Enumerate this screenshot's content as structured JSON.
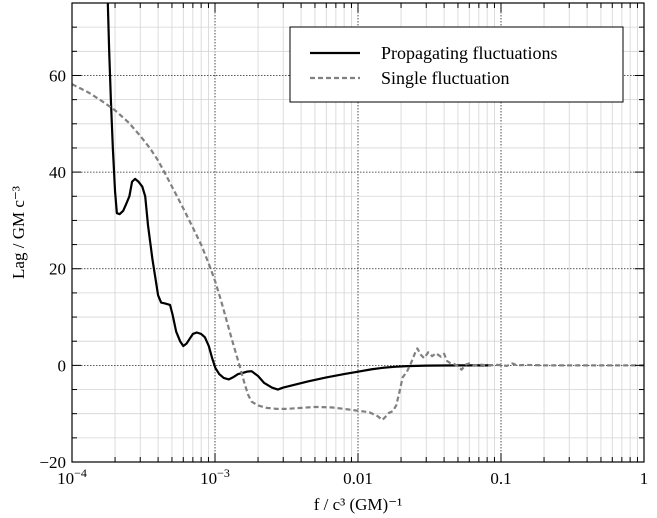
{
  "chart_data": {
    "type": "line",
    "x_scale": "log",
    "xlim": [
      0.0001,
      1
    ],
    "ylim": [
      -20,
      75
    ],
    "xlabel": "f / c³ (GM)⁻¹",
    "ylabel": "Lag / GM c⁻³",
    "x_ticks": [
      {
        "value": 0.0001,
        "base": "10",
        "exp": "−4"
      },
      {
        "value": 0.001,
        "base": "10",
        "exp": "−3"
      },
      {
        "value": 0.01,
        "base": "0.01",
        "exp": ""
      },
      {
        "value": 0.1,
        "base": "0.1",
        "exp": ""
      },
      {
        "value": 1,
        "base": "1",
        "exp": ""
      }
    ],
    "y_ticks": [
      {
        "value": -20,
        "label": "−20"
      },
      {
        "value": 0,
        "label": "0"
      },
      {
        "value": 20,
        "label": "20"
      },
      {
        "value": 40,
        "label": "40"
      },
      {
        "value": 60,
        "label": "60"
      }
    ],
    "grid": true,
    "legend_position": "top-right",
    "series": [
      {
        "name": "Propagating fluctuations",
        "color": "#000000",
        "style": "solid",
        "points": [
          [
            0.000178,
            75
          ],
          [
            0.000182,
            65
          ],
          [
            0.000187,
            55
          ],
          [
            0.000193,
            45
          ],
          [
            0.0002,
            36
          ],
          [
            0.000206,
            31.5
          ],
          [
            0.000215,
            31.3
          ],
          [
            0.000228,
            32
          ],
          [
            0.00024,
            33.5
          ],
          [
            0.000252,
            35
          ],
          [
            0.000263,
            38
          ],
          [
            0.000276,
            38.6
          ],
          [
            0.000292,
            38
          ],
          [
            0.00031,
            37
          ],
          [
            0.000325,
            35
          ],
          [
            0.00034,
            29
          ],
          [
            0.000365,
            22
          ],
          [
            0.0004,
            14.5
          ],
          [
            0.00042,
            13
          ],
          [
            0.00045,
            12.8
          ],
          [
            0.000485,
            12.5
          ],
          [
            0.000505,
            10.5
          ],
          [
            0.000535,
            7
          ],
          [
            0.00057,
            5
          ],
          [
            0.0006,
            4
          ],
          [
            0.000632,
            4.5
          ],
          [
            0.000665,
            5.5
          ],
          [
            0.0007,
            6.5
          ],
          [
            0.000745,
            6.8
          ],
          [
            0.0008,
            6.5
          ],
          [
            0.00085,
            5.8
          ],
          [
            0.000905,
            4
          ],
          [
            0.000955,
            1.5
          ],
          [
            0.001005,
            -0.5
          ],
          [
            0.00107,
            -1.8
          ],
          [
            0.00115,
            -2.6
          ],
          [
            0.00125,
            -2.9
          ],
          [
            0.00135,
            -2.4
          ],
          [
            0.00145,
            -1.8
          ],
          [
            0.00155,
            -1.6
          ],
          [
            0.00167,
            -1.3
          ],
          [
            0.0018,
            -1.2
          ],
          [
            0.002,
            -2.2
          ],
          [
            0.0022,
            -3.6
          ],
          [
            0.0025,
            -4.6
          ],
          [
            0.00275,
            -5
          ],
          [
            0.003,
            -4.6
          ],
          [
            0.0035,
            -4.1
          ],
          [
            0.0045,
            -3.3
          ],
          [
            0.006,
            -2.5
          ],
          [
            0.008,
            -1.8
          ],
          [
            0.01,
            -1.3
          ],
          [
            0.0125,
            -0.8
          ],
          [
            0.015,
            -0.5
          ],
          [
            0.018,
            -0.3
          ],
          [
            0.022,
            -0.15
          ],
          [
            0.03,
            -0.05
          ],
          [
            0.05,
            0
          ],
          [
            0.085,
            0
          ]
        ]
      },
      {
        "name": "Single fluctuation",
        "color": "#808080",
        "style": "dashed",
        "points": [
          [
            0.0001,
            58.2
          ],
          [
            0.00013,
            56.5
          ],
          [
            0.00016,
            54.8
          ],
          [
            0.0002,
            52.8
          ],
          [
            0.00025,
            50.2
          ],
          [
            0.0003,
            47.5
          ],
          [
            0.00035,
            45
          ],
          [
            0.0004,
            42.4
          ],
          [
            0.00045,
            39.6
          ],
          [
            0.0005,
            37
          ],
          [
            0.0006,
            32.5
          ],
          [
            0.0007,
            28.5
          ],
          [
            0.0008,
            25
          ],
          [
            0.0009,
            21.2
          ],
          [
            0.001,
            17.5
          ],
          [
            0.0011,
            13.5
          ],
          [
            0.0012,
            9.5
          ],
          [
            0.0013,
            5.8
          ],
          [
            0.0014,
            2.5
          ],
          [
            0.0015,
            -0.5
          ],
          [
            0.0016,
            -3.5
          ],
          [
            0.0017,
            -6
          ],
          [
            0.0018,
            -7.5
          ],
          [
            0.002,
            -8.3
          ],
          [
            0.0023,
            -8.8
          ],
          [
            0.0027,
            -9
          ],
          [
            0.0032,
            -9
          ],
          [
            0.004,
            -8.8
          ],
          [
            0.005,
            -8.6
          ],
          [
            0.0065,
            -8.7
          ],
          [
            0.008,
            -9
          ],
          [
            0.01,
            -9.4
          ],
          [
            0.012,
            -9.7
          ],
          [
            0.0137,
            -10.5
          ],
          [
            0.0148,
            -11.3
          ],
          [
            0.0155,
            -10.7
          ],
          [
            0.0165,
            -9.8
          ],
          [
            0.0175,
            -9.5
          ],
          [
            0.0185,
            -8.3
          ],
          [
            0.0195,
            -5.5
          ],
          [
            0.0205,
            -2.5
          ],
          [
            0.022,
            -1.3
          ],
          [
            0.0235,
            0.5
          ],
          [
            0.025,
            2.5
          ],
          [
            0.026,
            3.5
          ],
          [
            0.0275,
            2.2
          ],
          [
            0.029,
            1.5
          ],
          [
            0.031,
            2.7
          ],
          [
            0.033,
            1.9
          ],
          [
            0.035,
            2.5
          ],
          [
            0.038,
            1.8
          ],
          [
            0.04,
            2.4
          ],
          [
            0.042,
            0.9
          ],
          [
            0.044,
            0.5
          ],
          [
            0.047,
            0.3
          ],
          [
            0.05,
            -0.2
          ],
          [
            0.053,
            -0.9
          ],
          [
            0.057,
            0.2
          ],
          [
            0.06,
            0.4
          ],
          [
            0.065,
            -0.1
          ],
          [
            0.07,
            0.2
          ],
          [
            0.08,
            0
          ],
          [
            0.095,
            0.1
          ],
          [
            0.11,
            -0.1
          ],
          [
            0.12,
            0.4
          ],
          [
            0.13,
            0
          ],
          [
            0.15,
            0.1
          ],
          [
            0.2,
            0
          ],
          [
            0.3,
            0
          ],
          [
            0.5,
            0
          ],
          [
            1,
            0
          ]
        ]
      }
    ]
  }
}
